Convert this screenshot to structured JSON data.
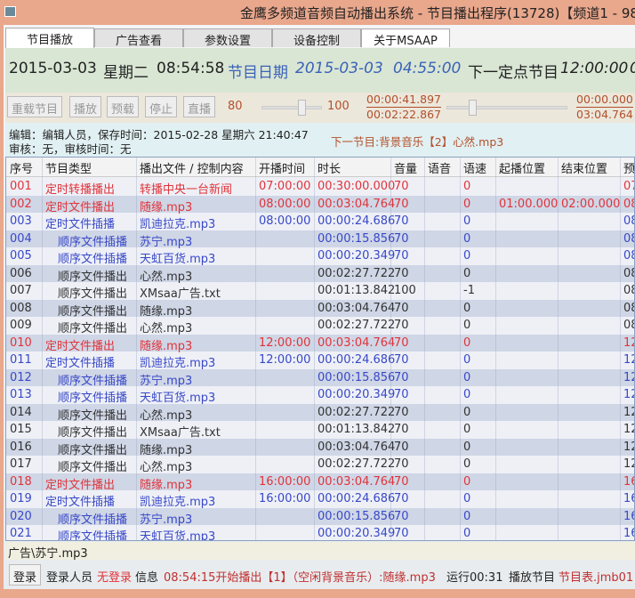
{
  "window": {
    "title": "金鹰多频道音频自动播出系统 - 节目播出程序(13728)【频道1 - 98."
  },
  "tabs": [
    "节目播放",
    "广告查看",
    "参数设置",
    "设备控制",
    "关于MSAAP"
  ],
  "clock": {
    "date": "2015-03-03",
    "weekday": "星期二",
    "time": "08:54:58",
    "program_date_label": "节目日期",
    "program_date": "2015-03-03",
    "program_time": "04:55:00",
    "next_fixed_label": "下一定点节目",
    "next_fixed_time": "12:00:00",
    "next_fixed_extra": "0"
  },
  "controls": {
    "buttons": [
      "重载节目",
      "播放",
      "预载",
      "停止",
      "直播"
    ],
    "volume_left": "80",
    "volume_right": "100",
    "volume_level": 80,
    "elapsed": "00:00:41.897",
    "total": "00:02:22.867",
    "pos_top": "00:00.000",
    "pos_bottom": "03:04.764",
    "progress_percent": 29
  },
  "info": {
    "editor": "编辑：编辑人员，保存时间：2015-02-28 星期六 21:40:47",
    "review": "审核：无，审核时间：无",
    "next": "下一节目:背景音乐【2】心然.mp3"
  },
  "table": {
    "columns": [
      "序号",
      "节目类型",
      "播出文件 / 控制内容",
      "开播时间",
      "时长",
      "音量",
      "语音",
      "语速",
      "起播位置",
      "结束位置",
      "预"
    ],
    "rows": [
      [
        "001",
        "定时转播播出",
        "转播中央一台新闻",
        "07:00:00",
        "00:30:00.000",
        "70",
        "",
        "0",
        "",
        "",
        "07",
        "red"
      ],
      [
        "002",
        "定时文件播出",
        "随缘.mp3",
        "08:00:00",
        "00:03:04.764",
        "70",
        "",
        "0",
        "01:00.000",
        "02:00.000",
        "08",
        "red"
      ],
      [
        "003",
        "定时文件插播",
        "凯迪拉克.mp3",
        "08:00:00",
        "00:00:24.686",
        "70",
        "",
        "0",
        "",
        "",
        "08",
        "blu"
      ],
      [
        "004",
        "顺序文件插播",
        "苏宁.mp3",
        "",
        "00:00:15.856",
        "70",
        "",
        "0",
        "",
        "",
        "08",
        "blu"
      ],
      [
        "005",
        "顺序文件插播",
        "天虹百货.mp3",
        "",
        "00:00:20.349",
        "70",
        "",
        "0",
        "",
        "",
        "08",
        "blu"
      ],
      [
        "006",
        "顺序文件播出",
        "心然.mp3",
        "",
        "00:02:27.722",
        "70",
        "",
        "0",
        "",
        "",
        "08",
        "drk"
      ],
      [
        "007",
        "顺序文件播出",
        "XMsaa广告.txt",
        "",
        "00:01:13.842",
        "100",
        "",
        "-1",
        "",
        "",
        "08",
        "drk"
      ],
      [
        "008",
        "顺序文件播出",
        "随缘.mp3",
        "",
        "00:03:04.764",
        "70",
        "",
        "0",
        "",
        "",
        "08",
        "drk"
      ],
      [
        "009",
        "顺序文件播出",
        "心然.mp3",
        "",
        "00:02:27.722",
        "70",
        "",
        "0",
        "",
        "",
        "08",
        "drk"
      ],
      [
        "010",
        "定时文件播出",
        "随缘.mp3",
        "12:00:00",
        "00:03:04.764",
        "70",
        "",
        "0",
        "",
        "",
        "12",
        "red"
      ],
      [
        "011",
        "定时文件插播",
        "凯迪拉克.mp3",
        "12:00:00",
        "00:00:24.686",
        "70",
        "",
        "0",
        "",
        "",
        "12",
        "blu"
      ],
      [
        "012",
        "顺序文件插播",
        "苏宁.mp3",
        "",
        "00:00:15.856",
        "70",
        "",
        "0",
        "",
        "",
        "12",
        "blu"
      ],
      [
        "013",
        "顺序文件插播",
        "天虹百货.mp3",
        "",
        "00:00:20.349",
        "70",
        "",
        "0",
        "",
        "",
        "12",
        "blu"
      ],
      [
        "014",
        "顺序文件播出",
        "心然.mp3",
        "",
        "00:02:27.722",
        "70",
        "",
        "0",
        "",
        "",
        "12",
        "drk"
      ],
      [
        "015",
        "顺序文件播出",
        "XMsaa广告.txt",
        "",
        "00:01:13.842",
        "70",
        "",
        "0",
        "",
        "",
        "12",
        "drk"
      ],
      [
        "016",
        "顺序文件播出",
        "随缘.mp3",
        "",
        "00:03:04.764",
        "70",
        "",
        "0",
        "",
        "",
        "12",
        "drk"
      ],
      [
        "017",
        "顺序文件播出",
        "心然.mp3",
        "",
        "00:02:27.722",
        "70",
        "",
        "0",
        "",
        "",
        "12",
        "drk"
      ],
      [
        "018",
        "定时文件播出",
        "随缘.mp3",
        "16:00:00",
        "00:03:04.764",
        "70",
        "",
        "0",
        "",
        "",
        "16",
        "red"
      ],
      [
        "019",
        "定时文件插播",
        "凯迪拉克.mp3",
        "16:00:00",
        "00:00:24.686",
        "70",
        "",
        "0",
        "",
        "",
        "16",
        "blu"
      ],
      [
        "020",
        "顺序文件插播",
        "苏宁.mp3",
        "",
        "00:00:15.856",
        "70",
        "",
        "0",
        "",
        "",
        "16",
        "blu"
      ],
      [
        "021",
        "顺序文件插播",
        "天虹百货.mp3",
        "",
        "00:00:20.349",
        "70",
        "",
        "0",
        "",
        "",
        "16",
        "blu"
      ]
    ]
  },
  "path": "广告\\苏宁.mp3",
  "status": {
    "login_button": "登录",
    "user_label": "登录人员",
    "user": "无登录",
    "info_label": "信息",
    "info": "08:54:15开始播出【1】（空闲背景音乐）:随缘.mp3",
    "run": "运行00:31",
    "program_label": "播放节目",
    "program": "节目表.jmb01"
  },
  "colors": {
    "title_bar": "#e9a78c",
    "red": "#e0343a",
    "blue": "#3848c8",
    "orange": "#b2502c"
  }
}
